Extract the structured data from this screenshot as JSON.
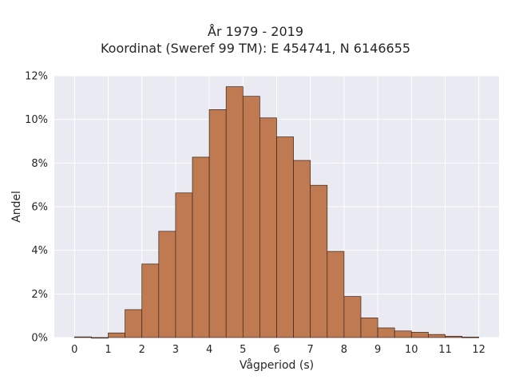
{
  "chart_data": {
    "type": "bar",
    "title": "År 1979 - 2019",
    "subtitle": "Koordinat (Sweref 99 TM): E 454741, N 6146655",
    "xlabel": "Vågperiod (s)",
    "ylabel": "Andel",
    "bin_width": 0.5,
    "bin_starts": [
      0,
      0.5,
      1,
      1.5,
      2,
      2.5,
      3,
      3.5,
      4,
      4.5,
      5,
      5.5,
      6,
      6.5,
      7,
      7.5,
      8,
      8.5,
      9,
      9.5,
      10,
      10.5,
      11,
      11.5
    ],
    "values": [
      0.03,
      0.0,
      0.21,
      1.28,
      3.37,
      4.87,
      6.63,
      8.27,
      10.45,
      11.5,
      11.06,
      10.07,
      9.2,
      8.12,
      6.98,
      3.95,
      1.88,
      0.9,
      0.44,
      0.3,
      0.24,
      0.14,
      0.06,
      0.02
    ],
    "xlim": [
      -0.6,
      12.6
    ],
    "ylim": [
      0,
      12
    ],
    "xticks": [
      "0",
      "1",
      "2",
      "3",
      "4",
      "5",
      "6",
      "7",
      "8",
      "9",
      "10",
      "11",
      "12"
    ],
    "yticks": [
      "0%",
      "2%",
      "4%",
      "6%",
      "8%",
      "10%",
      "12%"
    ],
    "grid": true,
    "colors": {
      "bar": "#c07a52",
      "edge": "#3a2418",
      "plot_bg": "#eaeaf2",
      "grid": "#ffffff"
    }
  }
}
